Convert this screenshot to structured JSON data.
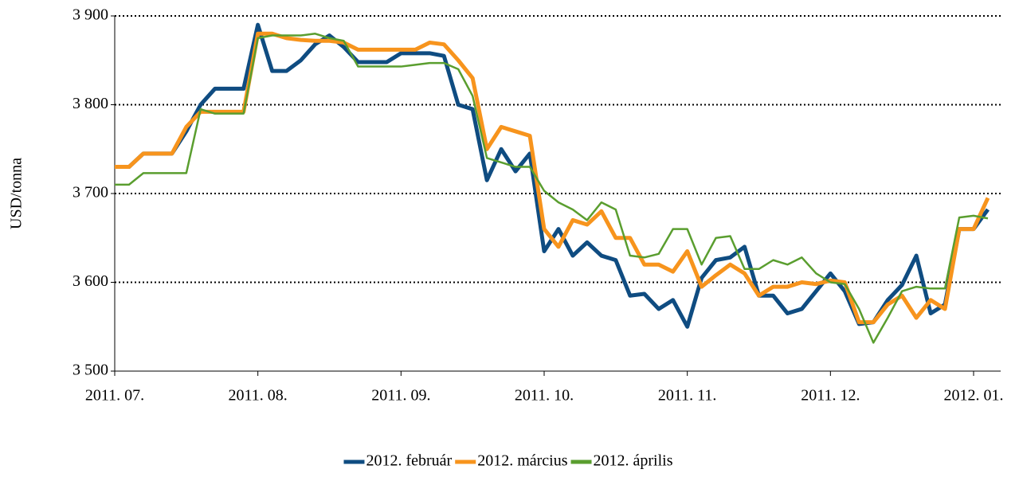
{
  "chart_data": {
    "type": "line",
    "y_label": "USD/tonna",
    "categories": [
      "2011. 07.",
      null,
      null,
      null,
      null,
      null,
      null,
      null,
      null,
      null,
      "2011. 08.",
      null,
      null,
      null,
      null,
      null,
      null,
      null,
      null,
      null,
      "2011. 09.",
      null,
      null,
      null,
      null,
      null,
      null,
      null,
      null,
      null,
      "2011. 10.",
      null,
      null,
      null,
      null,
      null,
      null,
      null,
      null,
      null,
      "2011. 11.",
      null,
      null,
      null,
      null,
      null,
      null,
      null,
      null,
      null,
      "2011. 12.",
      null,
      null,
      null,
      null,
      null,
      null,
      null,
      null,
      null,
      "2012. 01.",
      null
    ],
    "series": [
      {
        "name": "2012. február",
        "color": "#0f4c81",
        "width": 5,
        "values": [
          3730,
          3730,
          3745,
          3745,
          3745,
          3770,
          3800,
          3818,
          3818,
          3818,
          3890,
          3838,
          3838,
          3850,
          3868,
          3878,
          3865,
          3848,
          3848,
          3848,
          3858,
          3858,
          3858,
          3855,
          3800,
          3795,
          3715,
          3750,
          3725,
          3745,
          3635,
          3660,
          3630,
          3645,
          3630,
          3625,
          3585,
          3587,
          3570,
          3580,
          3550,
          3605,
          3625,
          3628,
          3640,
          3585,
          3585,
          3565,
          3570,
          3590,
          3610,
          3590,
          3553,
          3555,
          3580,
          3597,
          3630,
          3565,
          3575,
          3660,
          3660,
          3682
        ]
      },
      {
        "name": "2012. március",
        "color": "#f7941d",
        "width": 5,
        "values": [
          3730,
          3730,
          3745,
          3745,
          3745,
          3775,
          3792,
          3792,
          3792,
          3792,
          3880,
          3880,
          3875,
          3873,
          3872,
          3872,
          3870,
          3862,
          3862,
          3862,
          3862,
          3862,
          3870,
          3868,
          3850,
          3830,
          3750,
          3775,
          3770,
          3765,
          3660,
          3640,
          3670,
          3665,
          3680,
          3650,
          3650,
          3620,
          3620,
          3612,
          3635,
          3595,
          3608,
          3620,
          3610,
          3585,
          3595,
          3595,
          3600,
          3598,
          3602,
          3600,
          3555,
          3555,
          3575,
          3585,
          3560,
          3580,
          3570,
          3660,
          3660,
          3695
        ]
      },
      {
        "name": "2012. április",
        "color": "#5a9e2f",
        "width": 2.5,
        "values": [
          3710,
          3710,
          3723,
          3723,
          3723,
          3723,
          3795,
          3790,
          3790,
          3790,
          3875,
          3878,
          3878,
          3878,
          3880,
          3875,
          3872,
          3843,
          3843,
          3843,
          3843,
          3845,
          3847,
          3847,
          3840,
          3810,
          3740,
          3735,
          3730,
          3730,
          3703,
          3690,
          3682,
          3670,
          3690,
          3682,
          3630,
          3628,
          3632,
          3660,
          3660,
          3620,
          3650,
          3652,
          3615,
          3615,
          3625,
          3620,
          3628,
          3610,
          3600,
          3598,
          3570,
          3532,
          3560,
          3590,
          3595,
          3593,
          3593,
          3673,
          3675,
          3672
        ]
      }
    ],
    "ylim": [
      3500,
      3900
    ],
    "yticks": [
      {
        "value": 3500,
        "label": "3 500"
      },
      {
        "value": 3600,
        "label": "3 600"
      },
      {
        "value": 3700,
        "label": "3 700"
      },
      {
        "value": 3800,
        "label": "3 800"
      },
      {
        "value": 3900,
        "label": "3 900"
      }
    ],
    "grid": true,
    "legend": "bottom"
  }
}
